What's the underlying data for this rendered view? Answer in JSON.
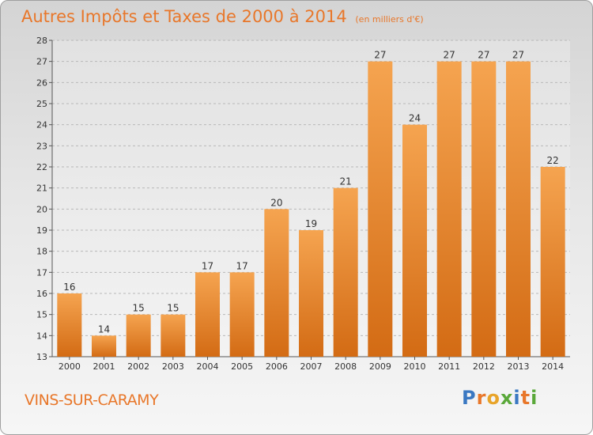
{
  "title": {
    "main": "Autres Impôts et Taxes de 2000 à 2014",
    "unit": "(en milliers d'€)"
  },
  "commune": "VINS-SUR-CARAMY",
  "logo": {
    "text": "Proxiti",
    "letter_colors": [
      "#3a78c2",
      "#e8772a",
      "#e8a42a",
      "#5aa83a",
      "#3a78c2",
      "#e8772a",
      "#5aa83a"
    ]
  },
  "colors": {
    "bar_top": "#f5a450",
    "bar_bottom": "#d36b14",
    "grid": "#b8b8b8",
    "axis_text": "#333333"
  },
  "chart_data": {
    "type": "bar",
    "title": "Autres Impôts et Taxes de 2000 à 2014",
    "xlabel": "",
    "ylabel": "",
    "categories": [
      "2000",
      "2001",
      "2002",
      "2003",
      "2004",
      "2005",
      "2006",
      "2007",
      "2008",
      "2009",
      "2010",
      "2011",
      "2012",
      "2013",
      "2014"
    ],
    "values": [
      16,
      14,
      15,
      15,
      17,
      17,
      20,
      19,
      21,
      27,
      24,
      27,
      27,
      27,
      22
    ],
    "ylim": [
      13,
      28
    ],
    "yticks": [
      13,
      14,
      15,
      16,
      17,
      18,
      19,
      20,
      21,
      22,
      23,
      24,
      25,
      26,
      27,
      28
    ],
    "grid": true,
    "legend": "none"
  }
}
